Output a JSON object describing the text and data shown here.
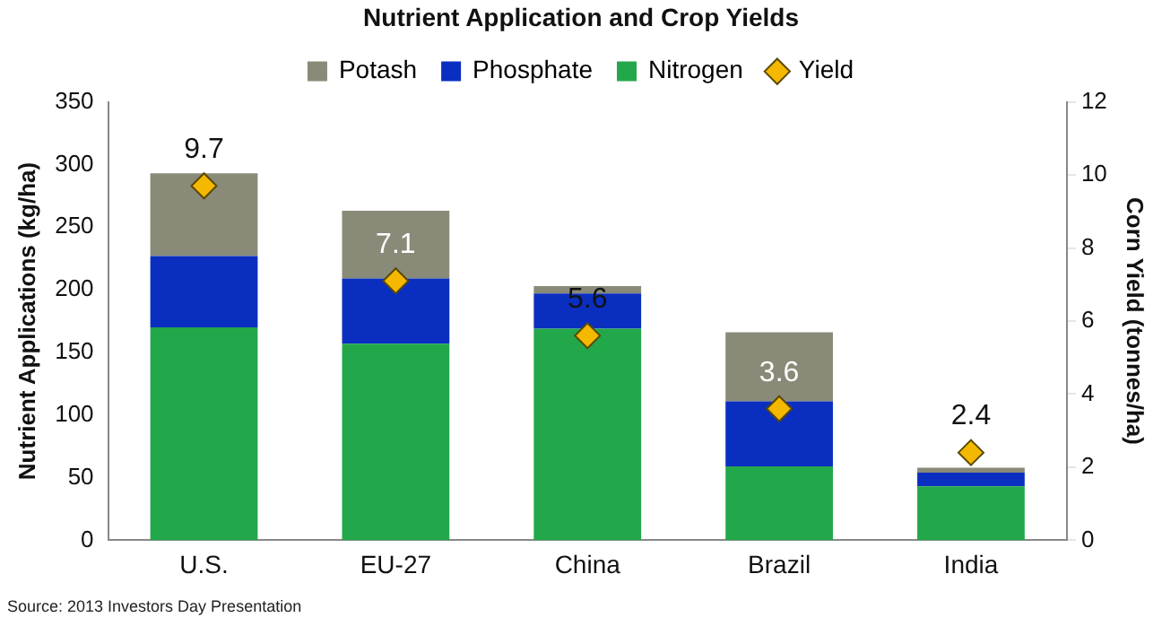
{
  "chart_data": {
    "type": "bar",
    "stacked": true,
    "title": "Nutrient Application and Crop Yields",
    "ylabel": "Nutrient Applications (kg/ha)",
    "y2label": "Corn Yield (tonnes/ha)",
    "categories": [
      "U.S.",
      "EU-27",
      "China",
      "Brazil",
      "India"
    ],
    "series": [
      {
        "name": "Nitrogen",
        "color": "#22a84a",
        "values": [
          170,
          157,
          169,
          59,
          43
        ]
      },
      {
        "name": "Phosphate",
        "color": "#0a2fc0",
        "values": [
          57,
          52,
          28,
          52,
          11
        ]
      },
      {
        "name": "Potash",
        "color": "#8a8a78",
        "values": [
          66,
          54,
          6,
          55,
          4
        ]
      },
      {
        "name": "Yield",
        "type": "scatter",
        "axis": "y2",
        "marker": "diamond",
        "color": "#f5b800",
        "values": [
          9.7,
          7.1,
          5.6,
          3.6,
          2.4
        ],
        "value_labels": [
          "9.7",
          "7.1",
          "5.6",
          "3.6",
          "2.4"
        ]
      }
    ],
    "ylim": [
      0,
      350
    ],
    "yticks": [
      0,
      50,
      100,
      150,
      200,
      250,
      300,
      350
    ],
    "y2lim": [
      0,
      12
    ],
    "y2ticks": [
      0,
      2,
      4,
      6,
      8,
      10,
      12
    ],
    "grid": false,
    "legend": "top",
    "annotations": [
      "Source: 2013 Investors Day Presentation"
    ]
  }
}
